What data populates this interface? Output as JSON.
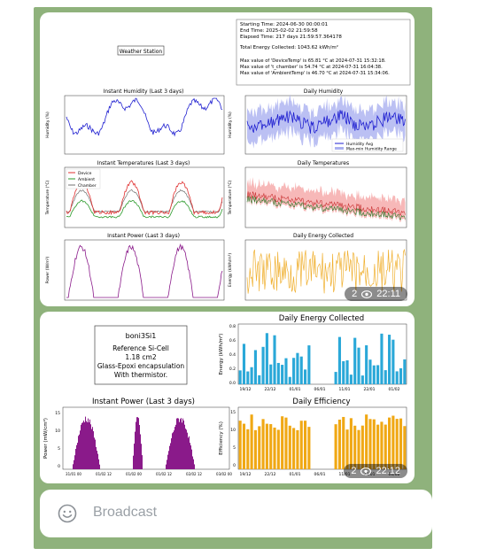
{
  "chat": {
    "messages": [
      {
        "views": "2",
        "time": "22:11",
        "figure": {
          "station_label": "Weather Station",
          "info": {
            "start": "Starting Time: 2024-06-30 00:00:01",
            "end": "End Time: 2025-02-02 21:59:58",
            "elapsed": "Elapsed Time: 217 days 21:59:57.364178",
            "energy": "Total Energy Collected: 1043.62 kWh/m²",
            "max1": "Max value of 'DeviceTemp' is 65.81 °C at 2024-07-31 15:32:18.",
            "max2": "Max value of 't_chamber' is 54.74 °C at 2024-07-31 16:04:38.",
            "max3": "Max value of 'AmbientTemp' is 46.70 °C at 2024-07-31 15:34:06."
          },
          "titles": {
            "instant_humidity": "Instant Humidity (Last 3 days)",
            "daily_humidity": "Daily Humidity",
            "instant_temps": "Instant Temperatures (Last 3 days)",
            "daily_temps": "Daily Temperatures",
            "instant_power": "Instant Power (Last 3 days)",
            "daily_energy": "Daily Energy Collected"
          },
          "ylabels": {
            "humidity": "Humidity (%)",
            "temperature": "Temperature (°C)",
            "power": "Power (W/m²)",
            "energy": "Energy (kWh/m²)"
          },
          "legends": {
            "humidity_avg": "Humidity Avg",
            "humidity_range": "Max-min Humidity Range",
            "device": "Device",
            "ambient": "Ambient",
            "chamber": "Chamber"
          }
        }
      },
      {
        "views": "2",
        "time": "22:12",
        "figure": {
          "box": {
            "line1": "boni3Si1",
            "line2": "Reference Si-Cell",
            "line3": "1.18 cm2",
            "line4": "Glass-Epoxi encapsulation",
            "line5": "With thermistor."
          },
          "titles": {
            "daily_energy": "Daily Energy Collected",
            "instant_power": "Instant Power (Last 3 days)",
            "daily_efficiency": "Daily Efficiency"
          },
          "ylabels": {
            "energy": "Energy (kWh/m²)",
            "power": "Power (mW/cm²)",
            "efficiency": "Efficiency (%)"
          },
          "energy_xticks": [
            "19/12",
            "22/12",
            "01/01",
            "06/01",
            "11/01",
            "22/01",
            "01/02"
          ],
          "efficiency_xticks": [
            "19/12",
            "22/12",
            "01/01",
            "06/01",
            "11/01",
            "22/01",
            "01/02"
          ],
          "power_xticks": [
            "31/01 00",
            "01/02 12",
            "01/02 00",
            "01/02 12",
            "02/02 12",
            "03/02 00"
          ],
          "power_yticks": [
            "15",
            "10",
            "5",
            "0"
          ],
          "efficiency_yticks": [
            "15",
            "10",
            "5",
            "0"
          ],
          "energy_yticks": [
            "0.8",
            "0.6",
            "0.4",
            "0.2",
            "0.0"
          ]
        }
      }
    ],
    "input": {
      "placeholder": "Broadcast"
    }
  },
  "colors": {
    "chat_bg": "#8fb27c",
    "humidity_line": "#1f1fd0",
    "range_fill": "#aab0f0",
    "device": "#e03030",
    "ambient": "#2a9a2a",
    "chamber": "#707070",
    "power": "#8a1a8a",
    "energy_line": "#f0b030",
    "energy_bar": "#2aa8d8",
    "efficiency_bar": "#f0a814"
  }
}
